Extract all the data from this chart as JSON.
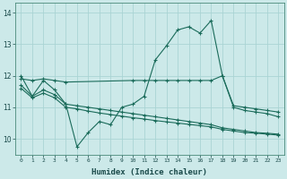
{
  "xlabel": "Humidex (Indice chaleur)",
  "background_color": "#cce9e9",
  "grid_color": "#aad4d4",
  "line_color": "#1a6b5a",
  "xlim": [
    -0.5,
    23.5
  ],
  "ylim": [
    9.5,
    14.3
  ],
  "xticks": [
    0,
    1,
    2,
    3,
    4,
    5,
    6,
    7,
    8,
    9,
    10,
    11,
    12,
    13,
    14,
    15,
    16,
    17,
    18,
    19,
    20,
    21,
    22,
    23
  ],
  "yticks": [
    10,
    11,
    12,
    13,
    14
  ],
  "series": {
    "line_volatile": {
      "x": [
        0,
        1,
        2,
        3,
        4,
        5,
        6,
        7,
        8,
        9,
        10,
        11,
        12,
        13,
        14,
        15,
        16,
        17,
        18,
        19,
        20,
        21,
        22,
        23
      ],
      "y": [
        12.0,
        11.35,
        11.85,
        11.55,
        11.1,
        9.75,
        10.2,
        10.55,
        10.45,
        11.0,
        11.1,
        11.35,
        12.5,
        12.95,
        13.45,
        13.55,
        13.35,
        13.75,
        12.0,
        11.0,
        10.9,
        10.85,
        10.8,
        10.7
      ]
    },
    "line_flat_top": {
      "x": [
        0,
        1,
        2,
        3,
        4,
        10,
        11,
        12,
        13,
        14,
        15,
        16,
        17,
        18,
        19,
        20,
        21,
        22,
        23
      ],
      "y": [
        11.9,
        11.85,
        11.9,
        11.85,
        11.8,
        11.85,
        11.85,
        11.85,
        11.85,
        11.85,
        11.85,
        11.85,
        11.85,
        12.0,
        11.05,
        11.0,
        10.95,
        10.9,
        10.85
      ]
    },
    "line_mid": {
      "x": [
        0,
        1,
        2,
        3,
        4,
        5,
        6,
        7,
        8,
        9,
        10,
        11,
        12,
        13,
        14,
        15,
        16,
        17,
        18,
        19,
        20,
        21,
        22,
        23
      ],
      "y": [
        11.7,
        11.35,
        11.55,
        11.4,
        11.1,
        11.05,
        11.0,
        10.95,
        10.9,
        10.85,
        10.8,
        10.75,
        10.7,
        10.65,
        10.6,
        10.55,
        10.5,
        10.45,
        10.35,
        10.3,
        10.25,
        10.2,
        10.18,
        10.15
      ]
    },
    "line_low": {
      "x": [
        0,
        1,
        2,
        3,
        4,
        5,
        6,
        7,
        8,
        9,
        10,
        11,
        12,
        13,
        14,
        15,
        16,
        17,
        18,
        19,
        20,
        21,
        22,
        23
      ],
      "y": [
        11.6,
        11.3,
        11.45,
        11.3,
        11.0,
        10.95,
        10.88,
        10.82,
        10.77,
        10.72,
        10.67,
        10.63,
        10.58,
        10.54,
        10.5,
        10.46,
        10.42,
        10.38,
        10.3,
        10.25,
        10.2,
        10.18,
        10.15,
        10.12
      ]
    }
  }
}
